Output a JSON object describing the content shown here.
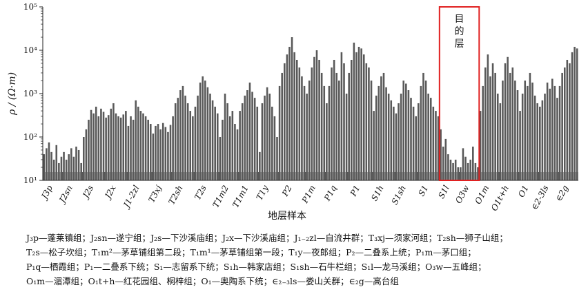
{
  "chart_data": {
    "type": "bar",
    "title": "",
    "ylabel": "ρ / (Ω·m)",
    "xlabel": "地层样本",
    "yscale": "log",
    "ylim": [
      10,
      100000
    ],
    "y_ticks": [
      "10¹",
      "10²",
      "10³",
      "10⁴",
      "10⁵"
    ],
    "grid": false,
    "target_annotation": {
      "label": "目的层",
      "groups": [
        "S1l",
        "O3w"
      ]
    },
    "groups": [
      {
        "label": "J3p",
        "values": [
          40,
          55,
          75,
          45,
          30,
          65,
          25,
          35
        ]
      },
      {
        "label": "J2sn",
        "values": [
          45,
          30,
          40,
          55,
          35,
          60,
          50,
          25
        ]
      },
      {
        "label": "J2s",
        "values": [
          100,
          150,
          250,
          420,
          350,
          500,
          300,
          450,
          380
        ]
      },
      {
        "label": "J2x",
        "values": [
          280,
          320,
          450,
          600,
          350,
          300,
          280,
          330,
          400
        ]
      },
      {
        "label": "J1-2zl",
        "values": [
          180,
          300,
          250,
          700,
          500,
          400,
          350,
          300,
          250,
          200
        ]
      },
      {
        "label": "T3xj",
        "values": [
          120,
          180,
          200,
          150,
          210,
          170,
          130,
          190
        ]
      },
      {
        "label": "T2sh",
        "values": [
          300,
          600,
          800,
          1200,
          1500,
          900,
          600,
          400,
          300
        ]
      },
      {
        "label": "T2s",
        "values": [
          500,
          900,
          1800,
          2500,
          2000,
          1400,
          1000,
          700,
          500,
          350
        ]
      },
      {
        "label": "T1m2",
        "values": [
          100,
          250,
          1000,
          600,
          300,
          400,
          200,
          150
        ]
      },
      {
        "label": "T1m1",
        "values": [
          400,
          600,
          900,
          1200,
          1800,
          1100,
          800,
          500
        ]
      },
      {
        "label": "T1y",
        "values": [
          45,
          600,
          900,
          1400,
          1000,
          500,
          300,
          100
        ]
      },
      {
        "label": "P2",
        "values": [
          1500,
          3000,
          5000,
          8000,
          12000,
          20000,
          9000,
          6000,
          4000,
          2500,
          1500
        ]
      },
      {
        "label": "P1m",
        "values": [
          1000,
          2000,
          4000,
          7000,
          10000,
          6000,
          3000,
          1500
        ]
      },
      {
        "label": "P1q",
        "values": [
          600,
          1500,
          4000,
          6000,
          3000,
          2000,
          9000,
          5000,
          1000
        ]
      },
      {
        "label": "P1",
        "values": [
          3000,
          6000,
          15000,
          9000,
          12000,
          11000,
          8000,
          5000,
          4000,
          2000
        ]
      },
      {
        "label": "S1h",
        "values": [
          400,
          900,
          1500,
          2500,
          3000,
          1400,
          1000,
          700,
          500
        ]
      },
      {
        "label": "S1sh",
        "values": [
          350,
          600,
          1000,
          2000,
          1700,
          1200,
          800,
          500,
          300
        ]
      },
      {
        "label": "S1",
        "values": [
          600,
          1500,
          3000,
          2000,
          1000,
          800,
          500,
          400,
          300
        ]
      },
      {
        "label": "S1l",
        "values": [
          150,
          60,
          90,
          40,
          30,
          25,
          30,
          20
        ]
      },
      {
        "label": "O3w",
        "values": [
          20,
          55,
          35,
          25,
          30,
          60,
          25,
          20
        ]
      },
      {
        "label": "O1m",
        "values": [
          400,
          1500,
          4000,
          8000,
          2500,
          5000,
          3000,
          1000
        ]
      },
      {
        "label": "O1t+h",
        "values": [
          600,
          2000,
          5000,
          7000,
          3000,
          4000,
          2000,
          1200
        ]
      },
      {
        "label": "O1",
        "values": [
          400,
          1000,
          2000,
          1500,
          3000,
          1800,
          900,
          600
        ]
      },
      {
        "label": "∈2-3ls",
        "values": [
          500,
          700,
          1000,
          1800,
          1300,
          2200,
          1500,
          800
        ]
      },
      {
        "label": "∈2g",
        "values": [
          1500,
          3000,
          4000,
          6000,
          5000,
          9000,
          12000,
          11000
        ]
      }
    ]
  },
  "legend_lines": [
    "J₃p—蓬莱镇组；J₂sn—遂宁组；J₂s—下沙溪庙组；J₂x—下沙溪庙组；J₁₋₂zl—自流井群；T₃xj—须家河组；T₂sh—狮子山组；",
    "T₂s—松子坎组；T₁m²—茅草铺组第二段；T₁m¹—茅草铺组第一段；T₁y—夜郎组；P₂—二叠系上统；P₁m—茅口组；",
    "P₁q—栖霞组；P₁—二叠系下统；S₁—志留系下统；S₁h—韩家店组；S₁sh—石牛栏组；S₁l—龙马溪组；O₃w—五峰组；",
    "O₁m—湄潭组；O₁t+h—红花园组、桐梓组；O₁—奥陶系下统；∈₂₋₃ls—娄山关群；∈₂g—高台组"
  ],
  "colors": {
    "bar": "#595959",
    "baseline_band": "#a6a6a6",
    "target_box": "#e02020",
    "axis": "#222222"
  }
}
